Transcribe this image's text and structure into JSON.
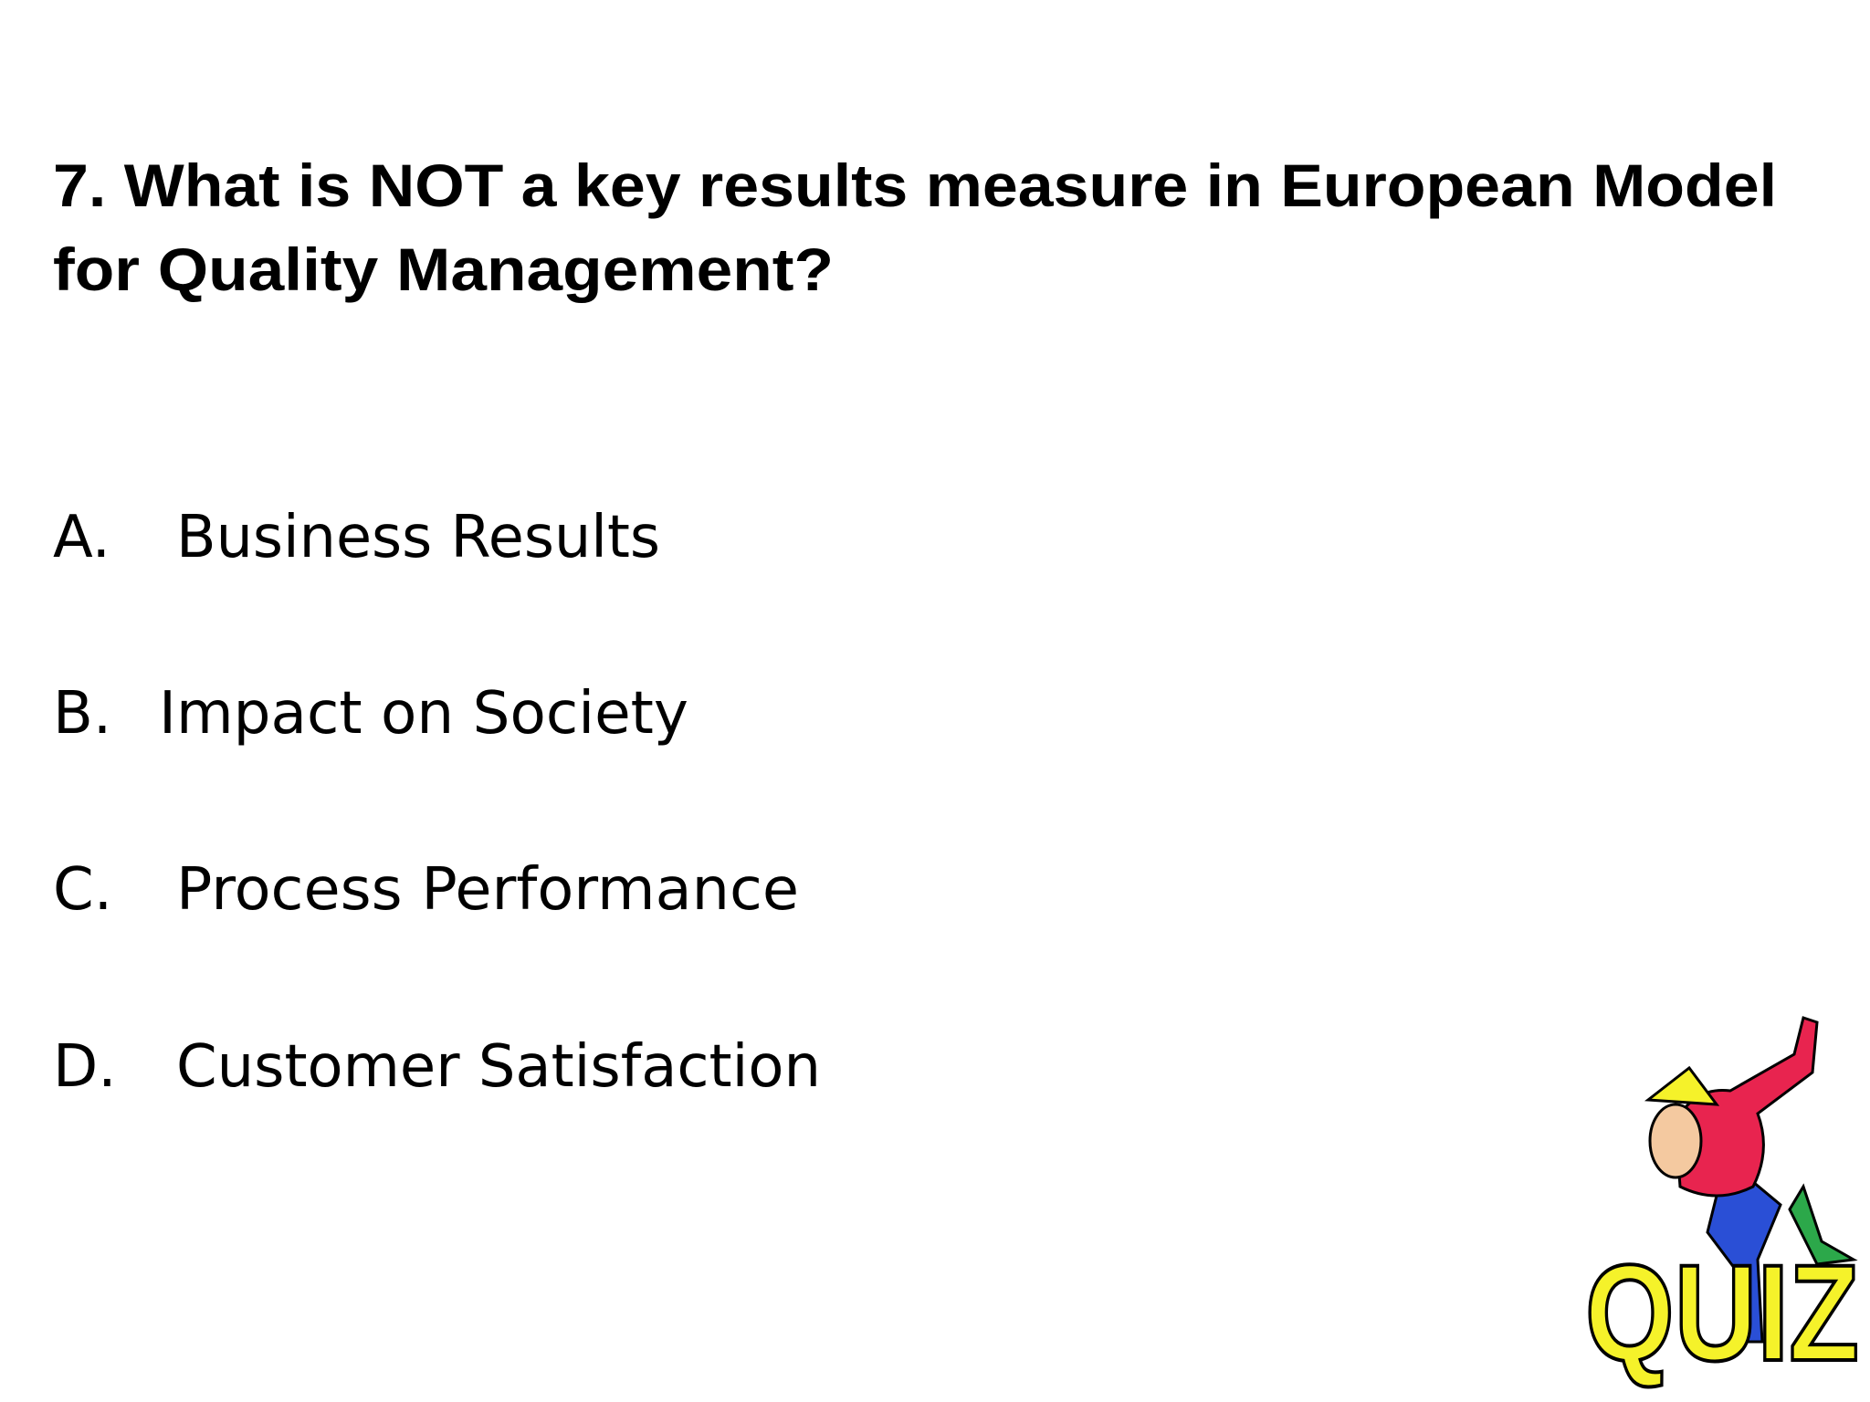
{
  "question": {
    "lines": [
      "7. What is NOT a key results measure in European Model",
      "for Quality Management?"
    ]
  },
  "options": [
    {
      "letter": "A.",
      "text": "Business Results"
    },
    {
      "letter": "B.",
      "text": "Impact on Society"
    },
    {
      "letter": "C.",
      "text": "Process Performance"
    },
    {
      "letter": "D.",
      "text": "Customer Satisfaction"
    }
  ],
  "clipart": {
    "label": "QUIZ"
  }
}
